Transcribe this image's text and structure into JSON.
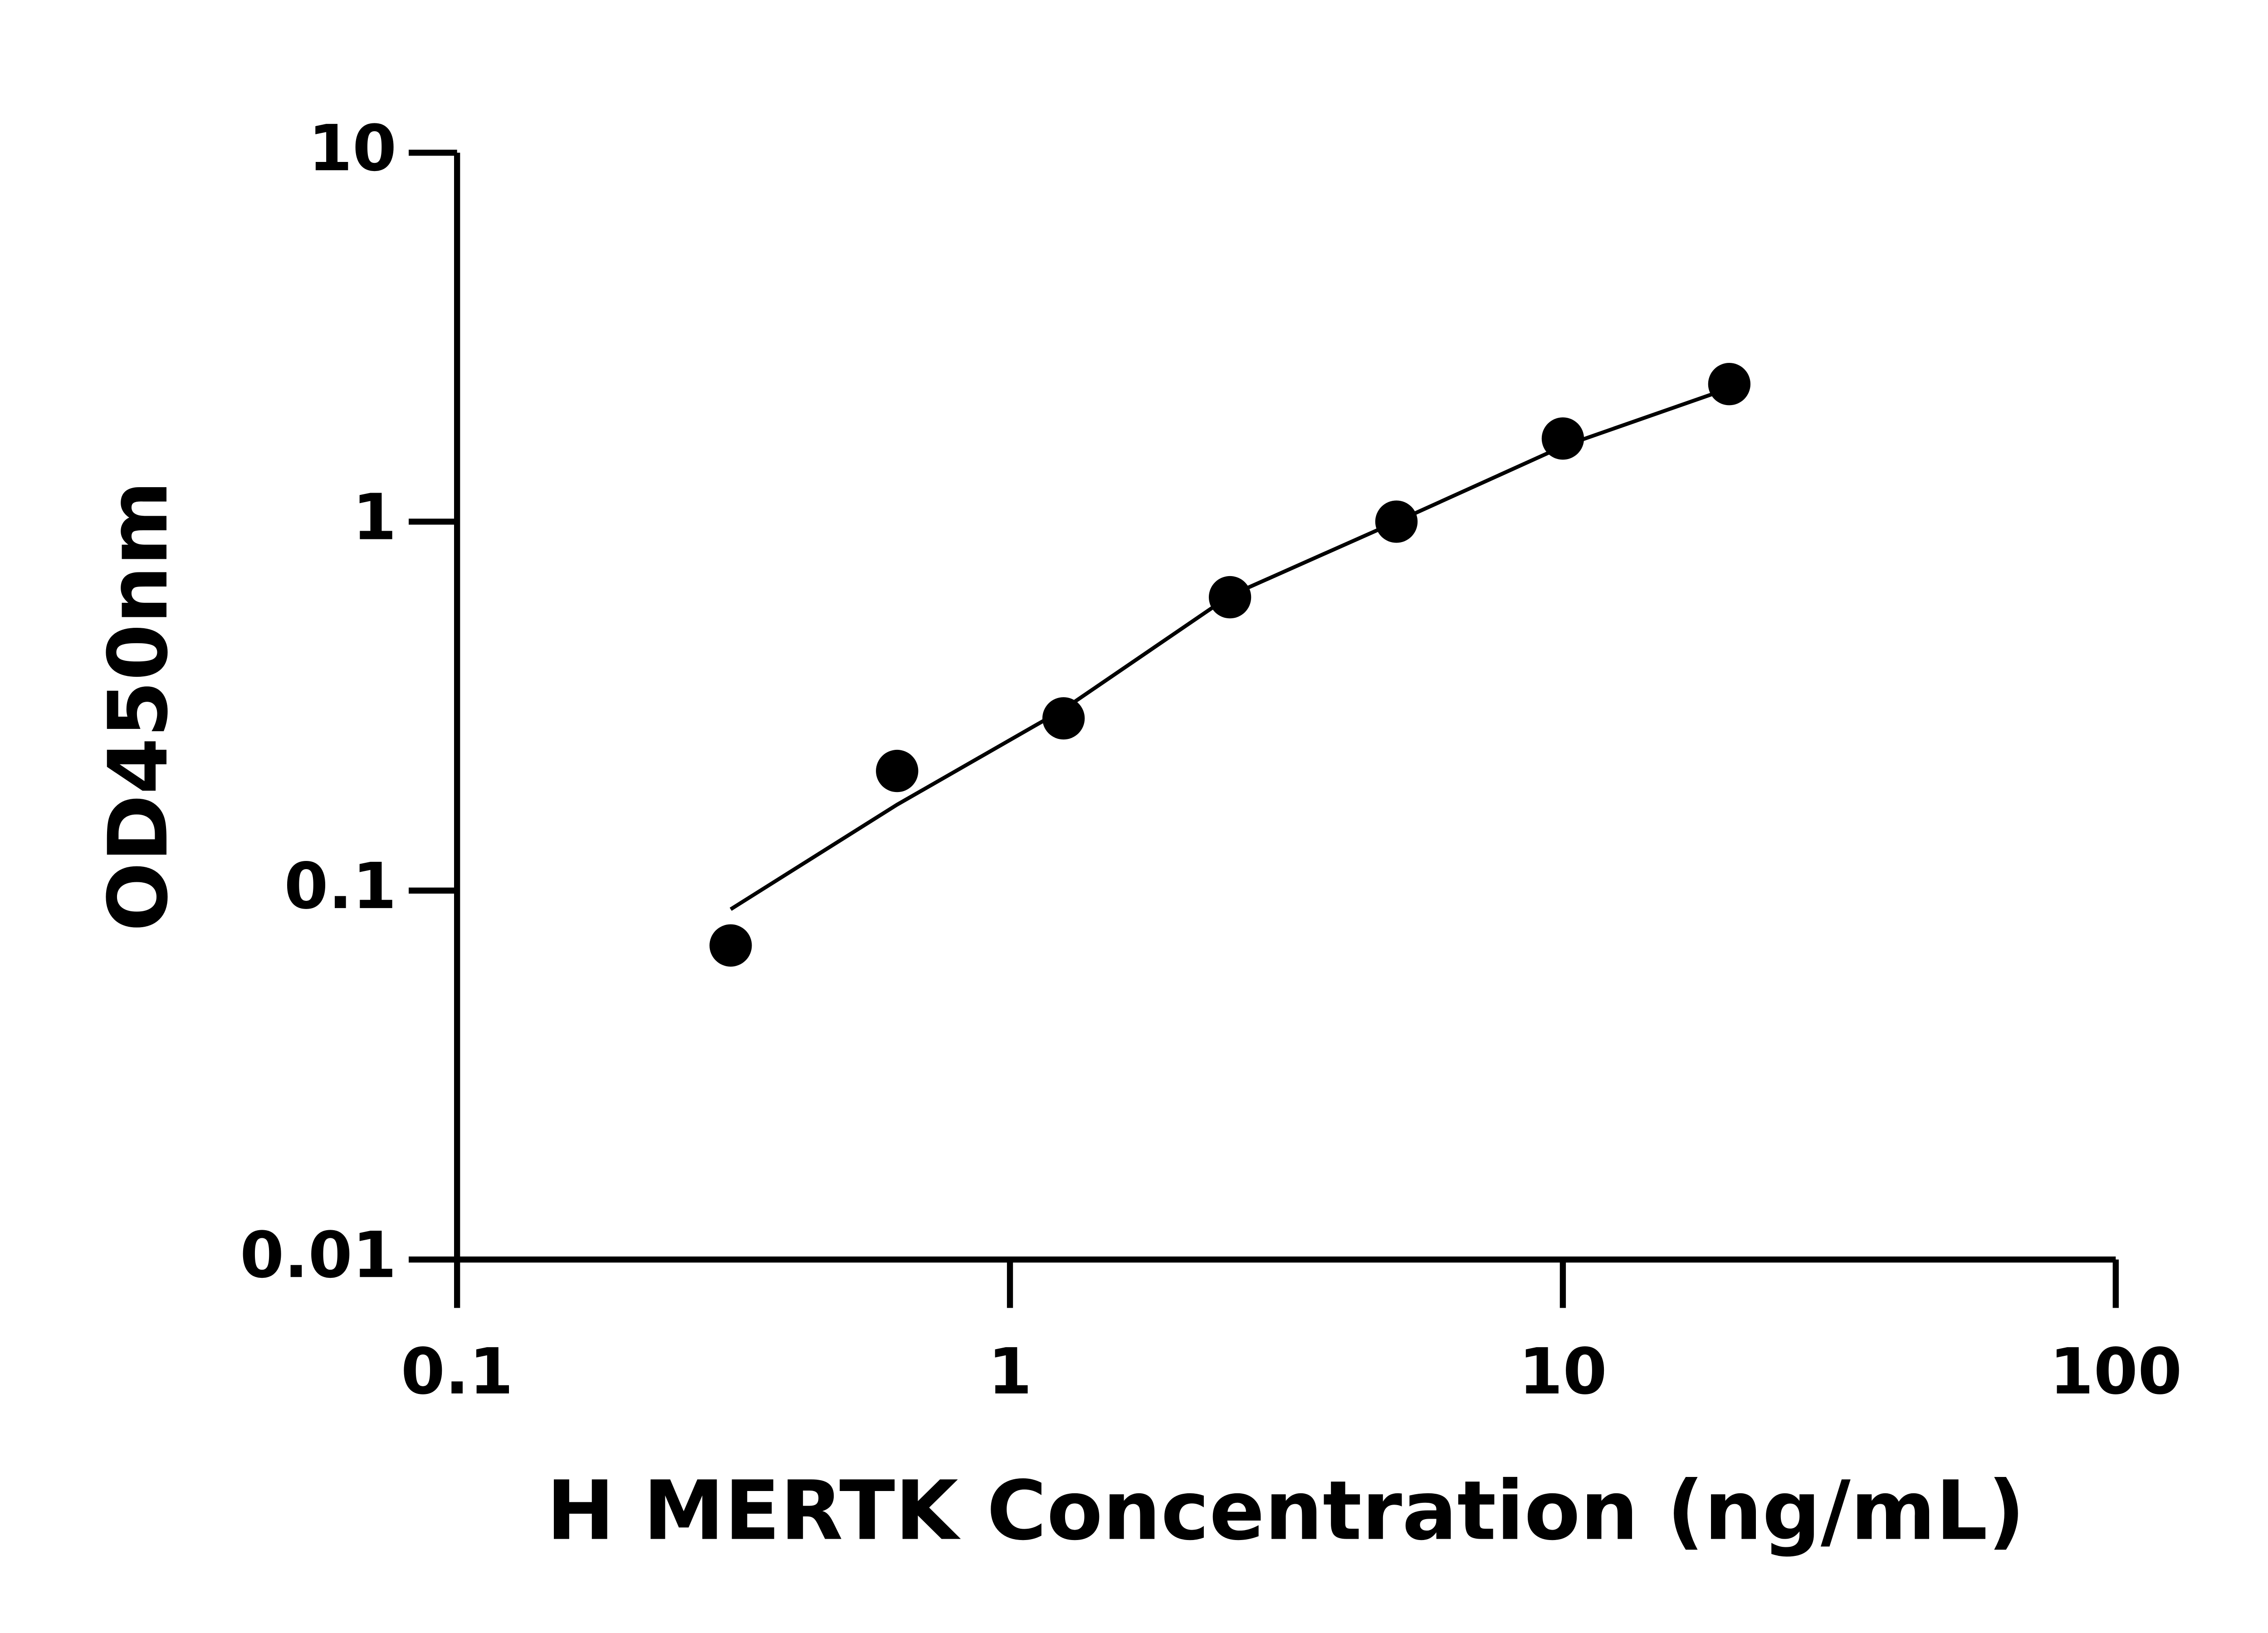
{
  "chart_data": {
    "type": "scatter",
    "x_label": "H MERTK Concentration (ng/mL)",
    "y_label": "OD450nm",
    "x_scale": "log",
    "y_scale": "log",
    "xlim": [
      0.1,
      100
    ],
    "xticks": [
      0.1,
      1,
      10,
      100
    ],
    "ylim": [
      0.01,
      10
    ],
    "yticks": [
      0.01,
      0.1,
      1,
      10
    ],
    "color": "#000000",
    "series": [
      {
        "x": [
          0.3125,
          0.625,
          1.25,
          2.5,
          5,
          10,
          20
        ],
        "values": [
          0.071,
          0.211,
          0.293,
          0.624,
          1.0,
          1.68,
          2.36
        ]
      }
    ],
    "fit_curve": {
      "x": [
        0.3125,
        0.625,
        1.25,
        2.5,
        5,
        10,
        20
      ],
      "values": [
        0.089,
        0.171,
        0.31,
        0.63,
        1.0,
        1.6,
        2.3
      ]
    }
  }
}
